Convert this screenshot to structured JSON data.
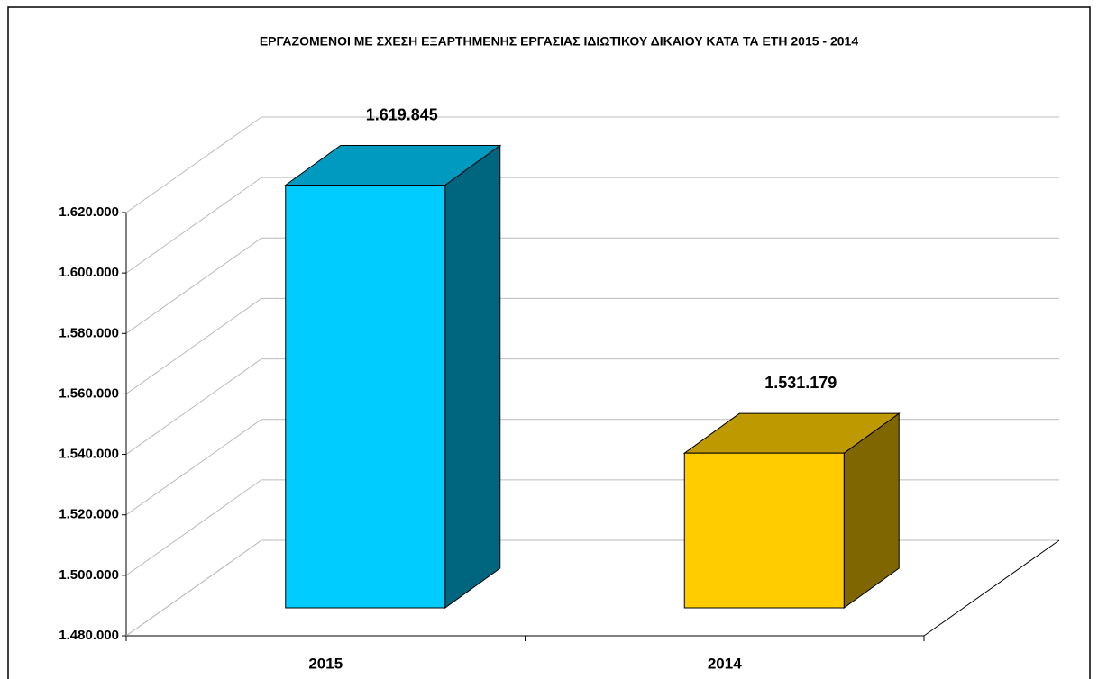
{
  "chart_data": {
    "type": "bar3d",
    "title": "ΕΡΓΑΖΟΜΕΝΟΙ ΜΕ ΣΧΕΣΗ ΕΞΑΡΤΗΜΕΝΗΣ ΕΡΓΑΣΙΑΣ ΙΔΙΩΤΙΚΟΥ ΔΙΚΑΙΟΥ ΚΑΤΑ ΤΑ ΕΤΗ 2015 - 2014",
    "categories": [
      "2015",
      "2014"
    ],
    "values": [
      1619845,
      1531179
    ],
    "value_labels": [
      "1.619.845",
      "1.531.179"
    ],
    "colors": [
      "#00ccff",
      "#ffcc00"
    ],
    "ylim": [
      1480000,
      1620000
    ],
    "yticks": [
      {
        "value": 1480000,
        "label": "1.480.000"
      },
      {
        "value": 1500000,
        "label": "1.500.000"
      },
      {
        "value": 1520000,
        "label": "1.520.000"
      },
      {
        "value": 1540000,
        "label": "1.540.000"
      },
      {
        "value": 1560000,
        "label": "1.560.000"
      },
      {
        "value": 1580000,
        "label": "1.580.000"
      },
      {
        "value": 1600000,
        "label": "1.600.000"
      },
      {
        "value": 1620000,
        "label": "1.620.000"
      }
    ],
    "grid": true
  }
}
